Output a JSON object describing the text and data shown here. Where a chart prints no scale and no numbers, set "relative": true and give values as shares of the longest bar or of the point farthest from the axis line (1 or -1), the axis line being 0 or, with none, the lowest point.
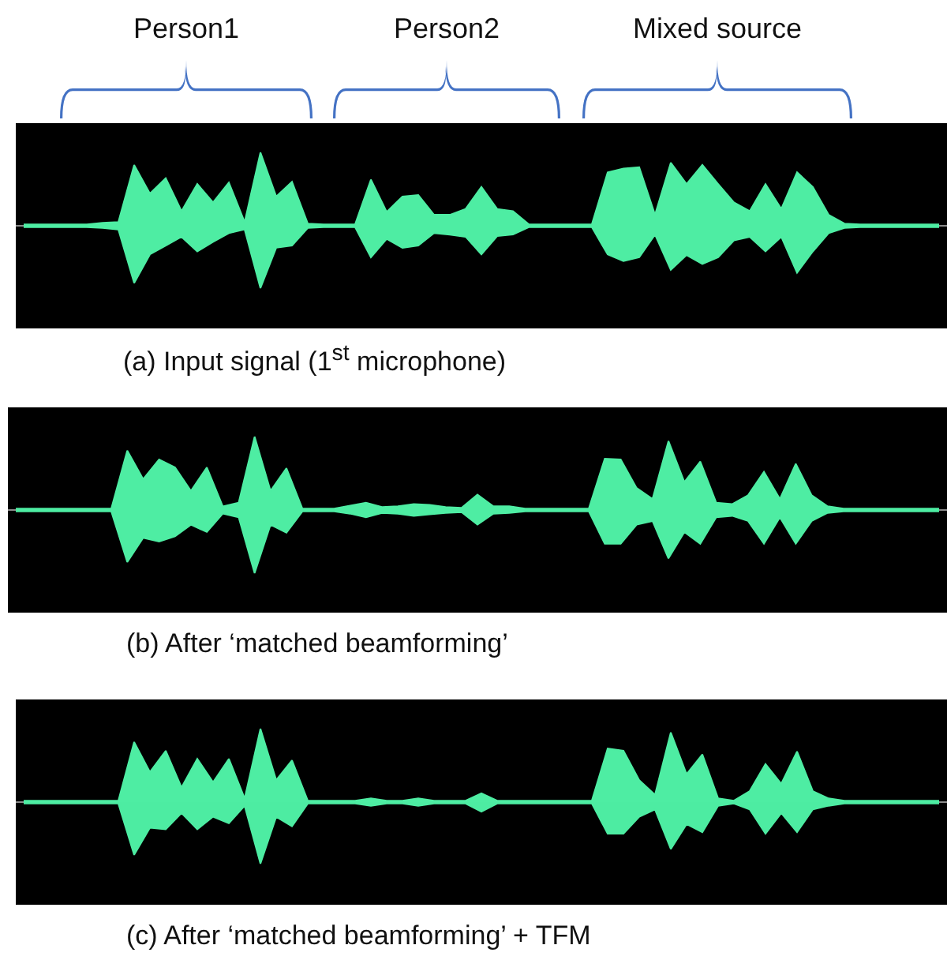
{
  "chart_data": [
    {
      "type": "area",
      "relative": true,
      "title": "(a) Input signal (1$^{st}$ microphone)",
      "annotations": [
        "Person1",
        "Person2",
        "Mixed source"
      ],
      "categories": [
        null,
        null,
        null,
        null,
        null,
        null,
        null,
        null,
        null,
        null,
        null,
        null,
        null,
        null,
        null,
        null,
        null,
        null,
        null,
        null,
        null,
        null,
        null,
        null,
        null,
        null,
        null,
        null,
        null,
        null,
        null,
        null,
        null,
        null,
        null,
        null,
        null,
        null,
        null,
        null,
        null,
        null,
        null,
        null,
        null,
        null,
        null,
        null,
        null,
        null,
        null,
        null,
        null,
        null,
        null,
        null,
        null,
        null,
        null
      ],
      "series": [
        {
          "color": "#4eeda3",
          "values": [
            0.02,
            0.02,
            0.02,
            0.02,
            0.02,
            0.04,
            0.05,
            0.83,
            0.44,
            0.65,
            0.2,
            0.57,
            0.32,
            0.59,
            0.05,
            1,
            0.4,
            0.6,
            0.03,
            0.02,
            0.02,
            0.02,
            0.63,
            0.19,
            0.4,
            0.42,
            0.15,
            0.15,
            0.23,
            0.53,
            0.23,
            0.2,
            0.02,
            0.02,
            0.02,
            0.02,
            0.02,
            0.73,
            0.78,
            0.8,
            0.15,
            0.86,
            0.57,
            0.83,
            0.57,
            0.32,
            0.2,
            0.57,
            0.23,
            0.73,
            0.53,
            0.15,
            0.03,
            0.02,
            0.02,
            0.02,
            0.02,
            0.02,
            0.02
          ]
        },
        {
          "color": "#4eeda3",
          "values": [
            -0.02,
            -0.02,
            -0.02,
            -0.02,
            -0.02,
            -0.03,
            -0.05,
            -0.78,
            -0.39,
            -0.27,
            -0.15,
            -0.35,
            -0.22,
            -0.1,
            -0.05,
            -0.85,
            -0.3,
            -0.27,
            -0.03,
            -0.02,
            -0.02,
            -0.02,
            -0.43,
            -0.18,
            -0.3,
            -0.27,
            -0.1,
            -0.12,
            -0.15,
            -0.39,
            -0.14,
            -0.12,
            -0.02,
            -0.02,
            -0.02,
            -0.02,
            -0.02,
            -0.39,
            -0.48,
            -0.43,
            -0.12,
            -0.6,
            -0.4,
            -0.52,
            -0.43,
            -0.2,
            -0.15,
            -0.35,
            -0.15,
            -0.64,
            -0.35,
            -0.1,
            -0.03,
            -0.02,
            -0.02,
            -0.02,
            -0.02,
            -0.02,
            -0.02
          ]
        }
      ]
    },
    {
      "type": "area",
      "relative": true,
      "title": "(b) After ‘matched beamforming’",
      "categories": [
        null,
        null,
        null,
        null,
        null,
        null,
        null,
        null,
        null,
        null,
        null,
        null,
        null,
        null,
        null,
        null,
        null,
        null,
        null,
        null,
        null,
        null,
        null,
        null,
        null,
        null,
        null,
        null,
        null,
        null,
        null,
        null,
        null,
        null,
        null,
        null,
        null,
        null,
        null,
        null,
        null,
        null,
        null,
        null,
        null,
        null,
        null,
        null,
        null,
        null,
        null,
        null,
        null,
        null,
        null,
        null,
        null,
        null,
        null
      ],
      "series": [
        {
          "color": "#4eeda3",
          "values": [
            0.02,
            0.02,
            0.02,
            0.02,
            0.02,
            0.02,
            0.02,
            0.81,
            0.42,
            0.69,
            0.58,
            0.26,
            0.58,
            0.05,
            0.1,
            1,
            0.26,
            0.57,
            0.02,
            0.02,
            0.02,
            0.06,
            0.1,
            0.04,
            0.05,
            0.08,
            0.07,
            0.04,
            0.03,
            0.21,
            0.05,
            0.05,
            0.02,
            0.02,
            0.02,
            0.02,
            0.02,
            0.7,
            0.69,
            0.3,
            0.15,
            0.94,
            0.38,
            0.66,
            0.1,
            0.08,
            0.2,
            0.52,
            0.15,
            0.63,
            0.2,
            0.05,
            0.02,
            0.02,
            0.02,
            0.02,
            0.02,
            0.02,
            0.02
          ]
        },
        {
          "color": "#4eeda3",
          "values": [
            -0.02,
            -0.02,
            -0.02,
            -0.02,
            -0.02,
            -0.02,
            -0.02,
            -0.71,
            -0.38,
            -0.43,
            -0.36,
            -0.2,
            -0.3,
            -0.05,
            -0.1,
            -0.86,
            -0.2,
            -0.31,
            -0.02,
            -0.02,
            -0.02,
            -0.05,
            -0.1,
            -0.04,
            -0.05,
            -0.08,
            -0.06,
            -0.04,
            -0.03,
            -0.2,
            -0.05,
            -0.04,
            -0.02,
            -0.02,
            -0.02,
            -0.02,
            -0.02,
            -0.46,
            -0.46,
            -0.2,
            -0.15,
            -0.66,
            -0.3,
            -0.46,
            -0.1,
            -0.08,
            -0.15,
            -0.46,
            -0.1,
            -0.46,
            -0.15,
            -0.04,
            -0.02,
            -0.02,
            -0.02,
            -0.02,
            -0.02,
            -0.02,
            -0.02
          ]
        }
      ]
    },
    {
      "type": "area",
      "relative": true,
      "title": "(c) After ‘matched beamforming’ + TFM",
      "categories": [
        null,
        null,
        null,
        null,
        null,
        null,
        null,
        null,
        null,
        null,
        null,
        null,
        null,
        null,
        null,
        null,
        null,
        null,
        null,
        null,
        null,
        null,
        null,
        null,
        null,
        null,
        null,
        null,
        null,
        null,
        null,
        null,
        null,
        null,
        null,
        null,
        null,
        null,
        null,
        null,
        null,
        null,
        null,
        null,
        null,
        null,
        null,
        null,
        null,
        null,
        null,
        null,
        null,
        null,
        null,
        null,
        null,
        null,
        null
      ],
      "series": [
        {
          "color": "#4eeda3",
          "values": [
            0.02,
            0.02,
            0.02,
            0.02,
            0.02,
            0.02,
            0.02,
            0.82,
            0.41,
            0.7,
            0.2,
            0.59,
            0.27,
            0.59,
            0.05,
            1,
            0.3,
            0.57,
            0.02,
            0.02,
            0.02,
            0.02,
            0.05,
            0.02,
            0.02,
            0.05,
            0.02,
            0.02,
            0.02,
            0.12,
            0.02,
            0.02,
            0.02,
            0.02,
            0.02,
            0.02,
            0.02,
            0.73,
            0.7,
            0.3,
            0.1,
            0.95,
            0.38,
            0.65,
            0.05,
            0.02,
            0.15,
            0.52,
            0.25,
            0.69,
            0.15,
            0.05,
            0.02,
            0.02,
            0.02,
            0.02,
            0.02,
            0.02,
            0.02
          ]
        },
        {
          "color": "#4deca2",
          "values": [
            -0.02,
            -0.02,
            -0.02,
            -0.02,
            -0.02,
            -0.02,
            -0.02,
            -0.72,
            -0.35,
            -0.37,
            -0.15,
            -0.37,
            -0.2,
            -0.29,
            -0.05,
            -0.84,
            -0.2,
            -0.33,
            -0.02,
            -0.02,
            -0.02,
            -0.02,
            -0.05,
            -0.02,
            -0.02,
            -0.05,
            -0.02,
            -0.02,
            -0.02,
            -0.13,
            -0.02,
            -0.02,
            -0.02,
            -0.02,
            -0.02,
            -0.02,
            -0.02,
            -0.43,
            -0.43,
            -0.2,
            -0.1,
            -0.64,
            -0.3,
            -0.41,
            -0.05,
            -0.02,
            -0.1,
            -0.43,
            -0.15,
            -0.41,
            -0.1,
            -0.05,
            -0.02,
            -0.02,
            -0.02,
            -0.02,
            -0.02,
            -0.02,
            -0.02
          ]
        }
      ]
    }
  ]
}
